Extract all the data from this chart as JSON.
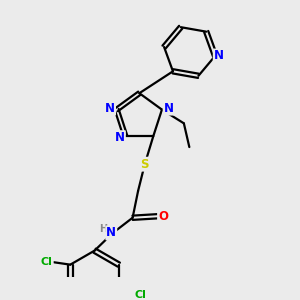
{
  "background_color": "#ebebeb",
  "bond_color": "#000000",
  "atom_colors": {
    "N": "#0000ff",
    "O": "#ff0000",
    "S": "#cccc00",
    "Cl": "#00aa00",
    "C": "#000000",
    "H": "#888888"
  },
  "figsize": [
    3.0,
    3.0
  ],
  "dpi": 100,
  "lw": 1.6,
  "fontsize": 8.0
}
